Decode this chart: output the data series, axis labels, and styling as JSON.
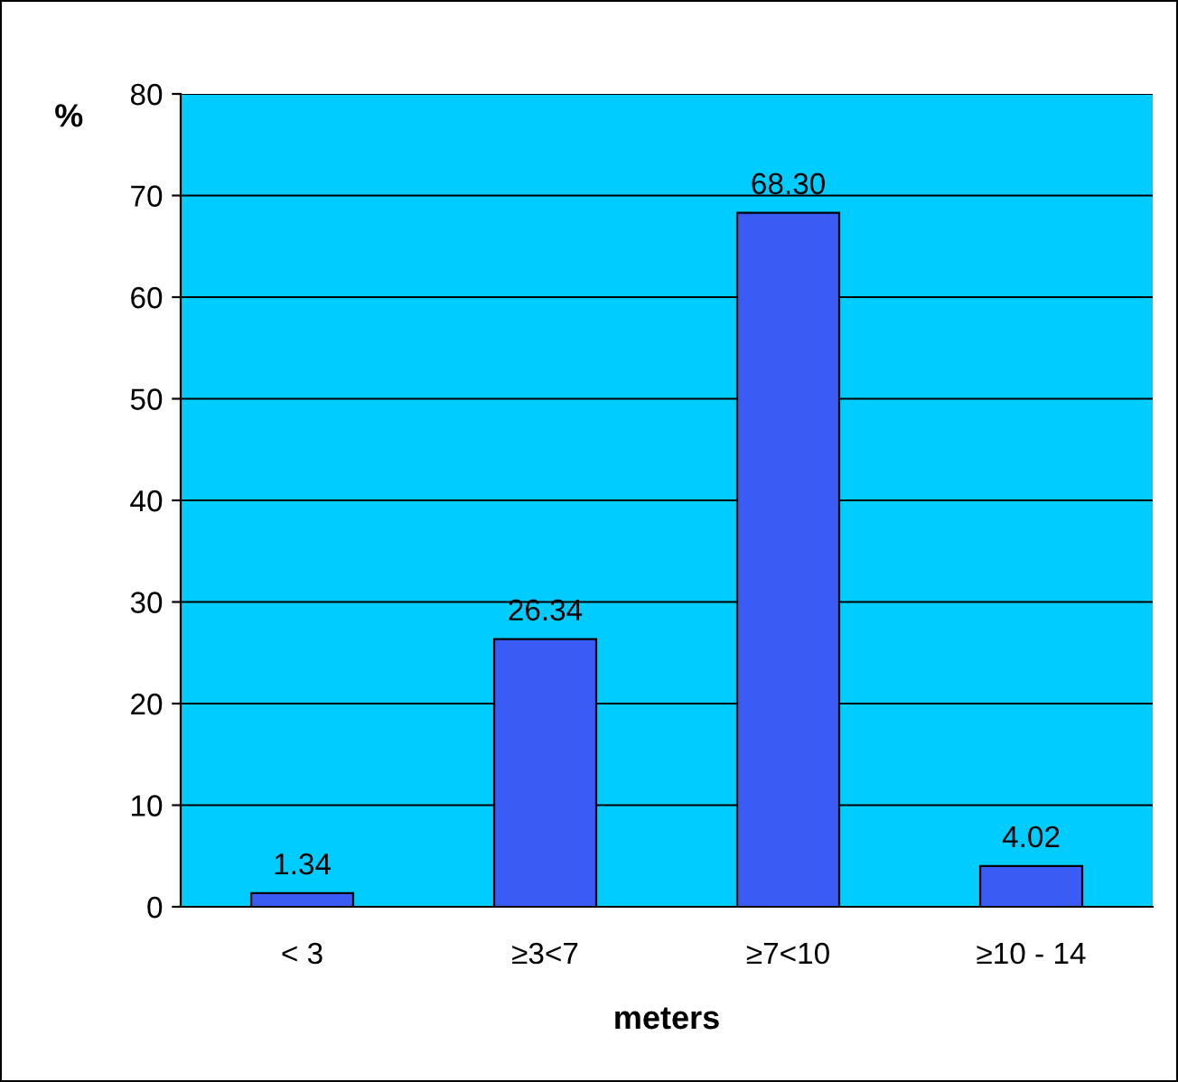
{
  "chart_data": {
    "type": "bar",
    "xlabel": "meters",
    "ylabel": "%",
    "categories": [
      "< 3",
      "≥3<7",
      "≥7<10",
      "≥10 - 14"
    ],
    "values": [
      1.34,
      26.34,
      68.3,
      4.02
    ],
    "value_labels": [
      "1.34",
      "26.34",
      "68.30",
      "4.02"
    ],
    "color": "#3a5cf5",
    "ylim": [
      0,
      80
    ],
    "yticks": [
      0,
      10,
      20,
      30,
      40,
      50,
      60,
      70,
      80
    ],
    "grid": "y"
  }
}
